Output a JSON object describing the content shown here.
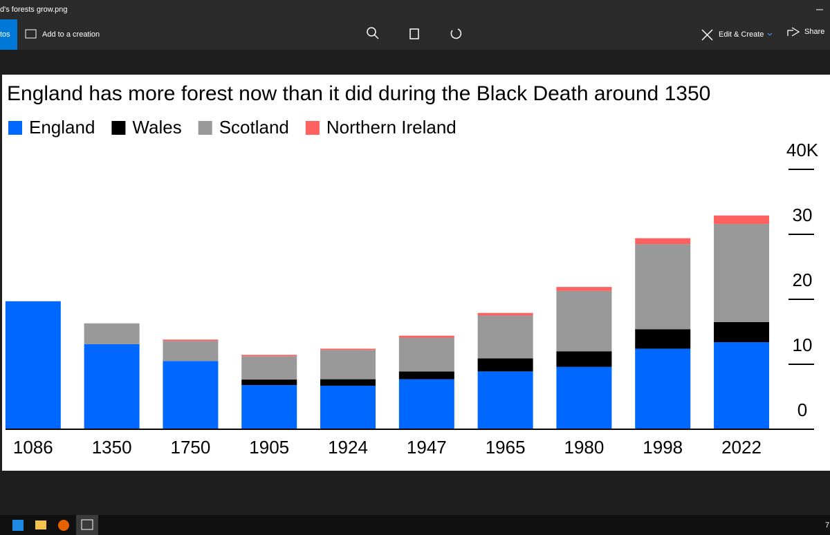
{
  "window": {
    "title": "d's forests grow.png"
  },
  "toolbar": {
    "left_button": "tos",
    "add_to_creation": "Add to a creation",
    "edit_create": "Edit & Create",
    "share": "Share"
  },
  "taskbar": {
    "clock": "7"
  },
  "chart_data": {
    "type": "bar",
    "stacked": true,
    "title": "England has more forest now than it did during the Black Death around 1350",
    "categories": [
      "1086",
      "1350",
      "1750",
      "1905",
      "1924",
      "1947",
      "1965",
      "1980",
      "1998",
      "2022"
    ],
    "series": [
      {
        "name": "England",
        "color": "#0068ff",
        "values": [
          19.7,
          13.1,
          10.5,
          6.8,
          6.7,
          7.7,
          8.9,
          9.6,
          12.4,
          13.4
        ]
      },
      {
        "name": "Wales",
        "color": "#000000",
        "values": [
          0,
          0,
          0,
          0.85,
          1.0,
          1.2,
          2.0,
          2.4,
          3.0,
          3.1
        ]
      },
      {
        "name": "Scotland",
        "color": "#999999",
        "values": [
          0,
          3.2,
          3.1,
          3.6,
          4.5,
          5.2,
          6.6,
          9.3,
          13.1,
          15.1
        ]
      },
      {
        "name": "Northern Ireland",
        "color": "#ff6161",
        "values": [
          0,
          0,
          0.2,
          0.2,
          0.2,
          0.3,
          0.4,
          0.6,
          0.9,
          1.3
        ]
      }
    ],
    "ylim": [
      0,
      40
    ],
    "yticks": [
      0,
      10,
      20,
      30,
      {
        "value": 40,
        "label": "40K"
      }
    ],
    "legend": "top-left"
  }
}
